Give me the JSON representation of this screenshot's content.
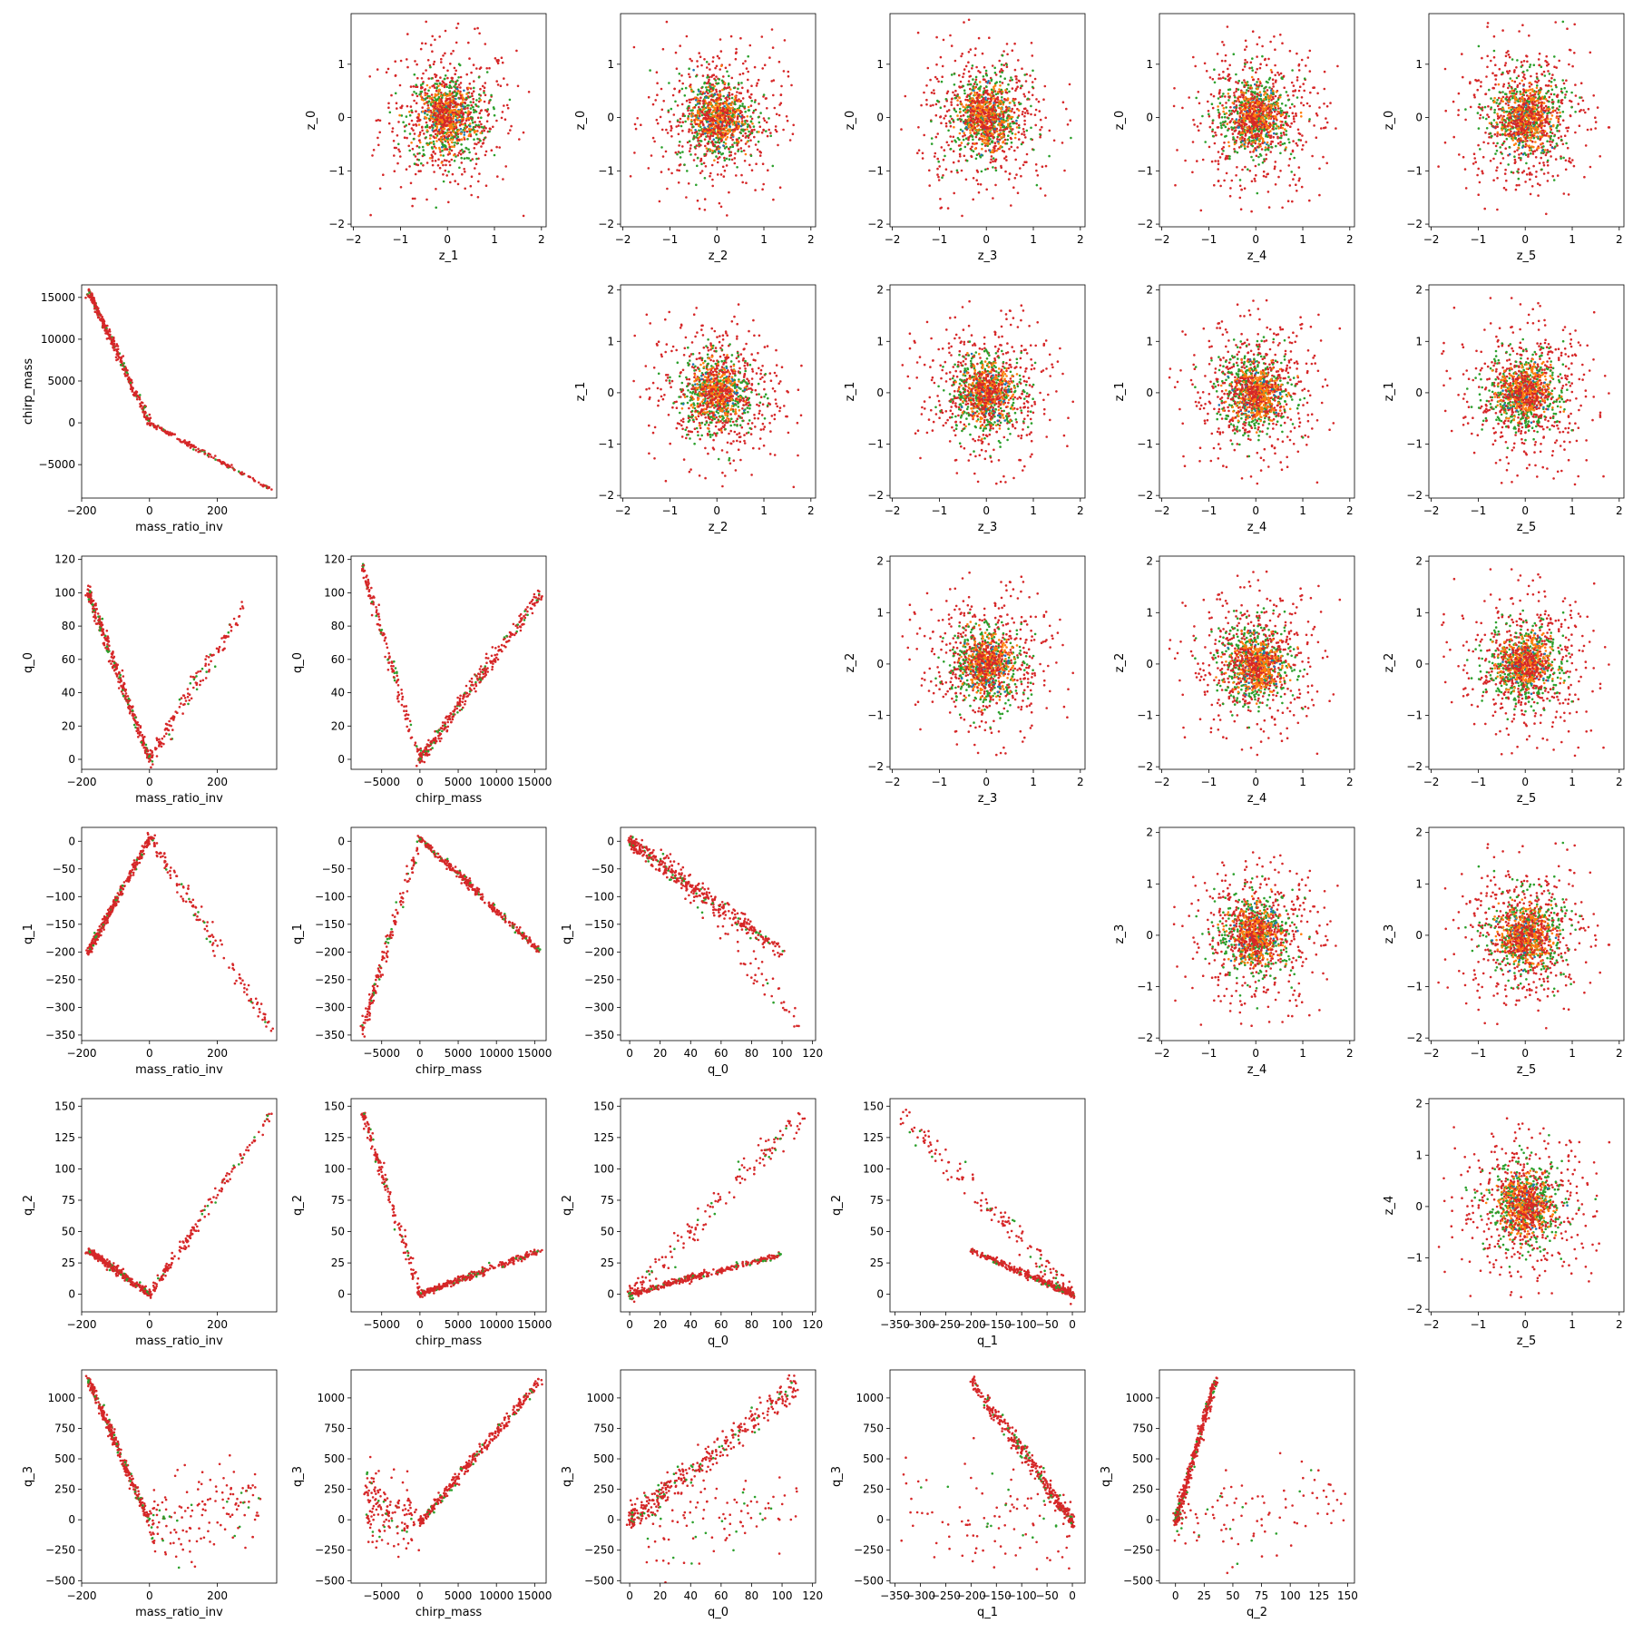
{
  "chart_data": {
    "type": "scatter",
    "layout": "corner-pair-grid",
    "grid": false,
    "legend": "none",
    "variables": {
      "z_0": {
        "ticks": [
          -2,
          -1,
          0,
          1
        ],
        "range": [
          -2.05,
          1.95
        ]
      },
      "z_1": {
        "ticks": [
          -2,
          -1,
          0,
          1,
          2
        ],
        "range": [
          -2.05,
          2.1
        ]
      },
      "z_2": {
        "ticks": [
          -2,
          -1,
          0,
          1,
          2
        ],
        "range": [
          -2.05,
          2.1
        ]
      },
      "z_3": {
        "ticks": [
          -2,
          -1,
          0,
          1,
          2
        ],
        "range": [
          -2.05,
          2.1
        ]
      },
      "z_4": {
        "ticks": [
          -2,
          -1,
          0,
          1,
          2
        ],
        "range": [
          -2.05,
          2.1
        ]
      },
      "z_5": {
        "ticks": [
          -2,
          -1,
          0,
          1,
          2
        ],
        "range": [
          -2.05,
          2.1
        ]
      },
      "mass_ratio_inv": {
        "ticks": [
          -200,
          0,
          200
        ],
        "range": [
          -200,
          375
        ]
      },
      "chirp_mass": {
        "ticks": [
          -5000,
          0,
          5000,
          10000,
          15000
        ],
        "range": [
          -9000,
          16500
        ]
      },
      "q_0": {
        "ticks": [
          0,
          20,
          40,
          60,
          80,
          100,
          120
        ],
        "range": [
          -6,
          122
        ]
      },
      "q_1": {
        "ticks": [
          -350,
          -300,
          -250,
          -200,
          -150,
          -100,
          -50,
          0
        ],
        "range": [
          -360,
          25
        ]
      },
      "q_2": {
        "ticks": [
          0,
          25,
          50,
          75,
          100,
          125,
          150
        ],
        "range": [
          -14,
          156
        ]
      },
      "q_3": {
        "ticks": [
          -500,
          -250,
          0,
          250,
          500,
          750,
          1000
        ],
        "range": [
          -520,
          1230
        ]
      }
    },
    "series": [
      {
        "color": "#1f77b4"
      },
      {
        "color": "#ff7f0e"
      },
      {
        "color": "#2ca02c"
      },
      {
        "color": "#d62728"
      }
    ],
    "panels": [
      {
        "row": 0,
        "col": 1,
        "x": "z_1",
        "y": "z_0",
        "kind": "cloud"
      },
      {
        "row": 0,
        "col": 2,
        "x": "z_2",
        "y": "z_0",
        "kind": "cloud"
      },
      {
        "row": 0,
        "col": 3,
        "x": "z_3",
        "y": "z_0",
        "kind": "cloud"
      },
      {
        "row": 0,
        "col": 4,
        "x": "z_4",
        "y": "z_0",
        "kind": "cloud"
      },
      {
        "row": 0,
        "col": 5,
        "x": "z_5",
        "y": "z_0",
        "kind": "cloud"
      },
      {
        "row": 1,
        "col": 0,
        "x": "mass_ratio_inv",
        "y": "chirp_mass",
        "kind": "arms",
        "arms": [
          {
            "from": [
              -180,
              15800
            ],
            "to": [
              0,
              0
            ],
            "n": 320,
            "spread": 220
          },
          {
            "from": [
              0,
              0
            ],
            "to": [
              360,
              -8000
            ],
            "n": 160,
            "spread": 120
          }
        ]
      },
      {
        "row": 1,
        "col": 2,
        "x": "z_2",
        "y": "z_1",
        "kind": "cloud"
      },
      {
        "row": 1,
        "col": 3,
        "x": "z_3",
        "y": "z_1",
        "kind": "cloud"
      },
      {
        "row": 1,
        "col": 4,
        "x": "z_4",
        "y": "z_1",
        "kind": "cloud"
      },
      {
        "row": 1,
        "col": 5,
        "x": "z_5",
        "y": "z_1",
        "kind": "cloud"
      },
      {
        "row": 2,
        "col": 0,
        "x": "mass_ratio_inv",
        "y": "q_0",
        "kind": "arms",
        "arms": [
          {
            "from": [
              -180,
              100
            ],
            "to": [
              0,
              0
            ],
            "n": 320,
            "spread": 2.5
          },
          {
            "from": [
              0,
              0
            ],
            "to": [
              280,
              92
            ],
            "n": 140,
            "spread": 4
          }
        ]
      },
      {
        "row": 2,
        "col": 1,
        "x": "chirp_mass",
        "y": "q_0",
        "kind": "arms",
        "arms": [
          {
            "from": [
              -7500,
              115
            ],
            "to": [
              0,
              0
            ],
            "n": 140,
            "spread": 4
          },
          {
            "from": [
              0,
              0
            ],
            "to": [
              15800,
              100
            ],
            "n": 320,
            "spread": 2.5
          }
        ]
      },
      {
        "row": 2,
        "col": 3,
        "x": "z_3",
        "y": "z_2",
        "kind": "cloud"
      },
      {
        "row": 2,
        "col": 4,
        "x": "z_4",
        "y": "z_2",
        "kind": "cloud"
      },
      {
        "row": 2,
        "col": 5,
        "x": "z_5",
        "y": "z_2",
        "kind": "cloud"
      },
      {
        "row": 3,
        "col": 0,
        "x": "mass_ratio_inv",
        "y": "q_1",
        "kind": "arms",
        "arms": [
          {
            "from": [
              -180,
              -200
            ],
            "to": [
              0,
              5
            ],
            "n": 320,
            "spread": 4
          },
          {
            "from": [
              0,
              5
            ],
            "to": [
              360,
              -340
            ],
            "n": 150,
            "spread": 10
          }
        ]
      },
      {
        "row": 3,
        "col": 1,
        "x": "chirp_mass",
        "y": "q_1",
        "kind": "arms",
        "arms": [
          {
            "from": [
              -7500,
              -340
            ],
            "to": [
              0,
              5
            ],
            "n": 150,
            "spread": 10
          },
          {
            "from": [
              0,
              5
            ],
            "to": [
              15800,
              -200
            ],
            "n": 320,
            "spread": 4
          }
        ]
      },
      {
        "row": 3,
        "col": 2,
        "x": "q_0",
        "y": "q_1",
        "kind": "arms",
        "arms": [
          {
            "from": [
              0,
              0
            ],
            "to": [
              100,
              -200
            ],
            "n": 380,
            "spread": 9
          },
          {
            "from": [
              20,
              -20
            ],
            "to": [
              115,
              -340
            ],
            "n": 90,
            "spread": 18
          }
        ]
      },
      {
        "row": 3,
        "col": 4,
        "x": "z_4",
        "y": "z_3",
        "kind": "cloud"
      },
      {
        "row": 3,
        "col": 5,
        "x": "z_5",
        "y": "z_3",
        "kind": "cloud"
      },
      {
        "row": 4,
        "col": 0,
        "x": "mass_ratio_inv",
        "y": "q_2",
        "kind": "arms",
        "arms": [
          {
            "from": [
              -180,
              35
            ],
            "to": [
              0,
              0
            ],
            "n": 320,
            "spread": 1.5
          },
          {
            "from": [
              0,
              0
            ],
            "to": [
              360,
              145
            ],
            "n": 160,
            "spread": 3
          }
        ]
      },
      {
        "row": 4,
        "col": 1,
        "x": "chirp_mass",
        "y": "q_2",
        "kind": "arms",
        "arms": [
          {
            "from": [
              -7500,
              145
            ],
            "to": [
              0,
              0
            ],
            "n": 160,
            "spread": 3
          },
          {
            "from": [
              0,
              0
            ],
            "to": [
              15800,
              35
            ],
            "n": 320,
            "spread": 1.5
          }
        ]
      },
      {
        "row": 4,
        "col": 2,
        "x": "q_0",
        "y": "q_2",
        "kind": "arms",
        "arms": [
          {
            "from": [
              0,
              0
            ],
            "to": [
              100,
              32
            ],
            "n": 320,
            "spread": 1.5
          },
          {
            "from": [
              0,
              0
            ],
            "to": [
              115,
              145
            ],
            "n": 160,
            "spread": 6
          }
        ]
      },
      {
        "row": 4,
        "col": 3,
        "x": "q_1",
        "y": "q_2",
        "kind": "arms",
        "arms": [
          {
            "from": [
              0,
              0
            ],
            "to": [
              -200,
              35
            ],
            "n": 320,
            "spread": 1.5
          },
          {
            "from": [
              0,
              0
            ],
            "to": [
              -340,
              145
            ],
            "n": 160,
            "spread": 6
          }
        ]
      },
      {
        "row": 4,
        "col": 5,
        "x": "z_5",
        "y": "z_4",
        "kind": "cloud"
      },
      {
        "row": 5,
        "col": 0,
        "x": "mass_ratio_inv",
        "y": "q_3",
        "kind": "arms",
        "arms": [
          {
            "from": [
              -180,
              1150
            ],
            "to": [
              0,
              -20
            ],
            "n": 320,
            "spread": 25
          },
          {
            "from": [
              0,
              -20
            ],
            "to": [
              320,
              150
            ],
            "n": 160,
            "spread": 180
          }
        ]
      },
      {
        "row": 5,
        "col": 1,
        "x": "chirp_mass",
        "y": "q_3",
        "kind": "arms",
        "arms": [
          {
            "from": [
              -7000,
              150
            ],
            "to": [
              0,
              -20
            ],
            "n": 160,
            "spread": 180
          },
          {
            "from": [
              0,
              -20
            ],
            "to": [
              15800,
              1150
            ],
            "n": 320,
            "spread": 25
          }
        ]
      },
      {
        "row": 5,
        "col": 2,
        "x": "q_0",
        "y": "q_3",
        "kind": "arms",
        "arms": [
          {
            "from": [
              0,
              0
            ],
            "to": [
              110,
              1100
            ],
            "n": 380,
            "spread": 70
          },
          {
            "from": [
              10,
              -50
            ],
            "to": [
              110,
              100
            ],
            "n": 100,
            "spread": 220
          }
        ]
      },
      {
        "row": 5,
        "col": 3,
        "x": "q_1",
        "y": "q_3",
        "kind": "arms",
        "arms": [
          {
            "from": [
              0,
              -20
            ],
            "to": [
              -200,
              1150
            ],
            "n": 380,
            "spread": 45
          },
          {
            "from": [
              0,
              -50
            ],
            "to": [
              -340,
              150
            ],
            "n": 100,
            "spread": 220
          }
        ]
      },
      {
        "row": 5,
        "col": 4,
        "x": "q_2",
        "y": "q_3",
        "kind": "arms",
        "arms": [
          {
            "from": [
              0,
              -20
            ],
            "to": [
              35,
              1150
            ],
            "n": 380,
            "spread": 30
          },
          {
            "from": [
              0,
              0
            ],
            "to": [
              150,
              150
            ],
            "n": 100,
            "spread": 220
          }
        ]
      }
    ]
  }
}
